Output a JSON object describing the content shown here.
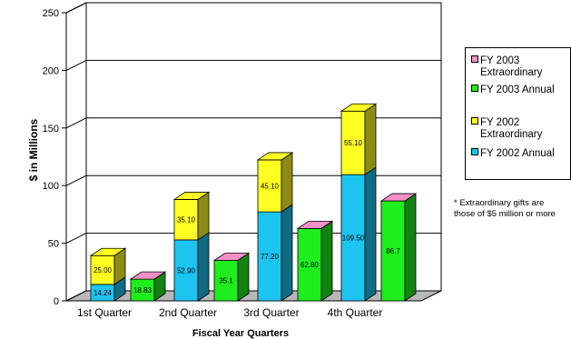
{
  "chart_data": {
    "type": "bar",
    "subtype": "stacked-3d",
    "xlabel": "Fiscal Year Quarters",
    "ylabel": "$ in Millions",
    "ylim": [
      0,
      250
    ],
    "yticks": [
      0,
      50,
      100,
      150,
      200,
      250
    ],
    "grid": true,
    "legend_placement": "right",
    "categories": [
      "1st Quarter",
      "2nd Quarter",
      "3rd Quarter",
      "4th Quarter"
    ],
    "series": [
      {
        "name": "FY 2002 Annual",
        "color": "#1CC4F0",
        "values": [
          14.24,
          52.9,
          77.2,
          109.5
        ],
        "labels": [
          "14.24",
          "52.90",
          "77.20",
          "109.50"
        ]
      },
      {
        "name": "FY 2002 Extraordinary",
        "color": "#FFFF22",
        "values": [
          25.0,
          35.1,
          45.1,
          55.1
        ],
        "labels": [
          "25.00",
          "35.10",
          "45.10",
          "55.10"
        ]
      },
      {
        "name": "FY 2003 Annual",
        "color": "#1EEE1E",
        "values": [
          18.83,
          35.1,
          62.8,
          86.7
        ],
        "labels": [
          "18.83",
          "35.1",
          "62.80",
          "86.7"
        ]
      },
      {
        "name": "FY 2003 Extraordinary",
        "color": "#F58FC8",
        "values": [
          0,
          0,
          0,
          0
        ],
        "labels": []
      }
    ]
  },
  "legend": [
    {
      "line1": "FY 2003",
      "line2": "Extraordinary",
      "color": "#F58FC8"
    },
    {
      "line1": "FY 2003 Annual",
      "line2": "",
      "color": "#1EEE1E"
    },
    {
      "line1": "FY 2002",
      "line2": "Extraordinary",
      "color": "#FFFF22"
    },
    {
      "line1": "FY 2002 Annual",
      "line2": "",
      "color": "#1CC4F0"
    }
  ],
  "footnote": {
    "line1": "* Extraordinary gifts are",
    "line2": "those of $5 million or more"
  }
}
